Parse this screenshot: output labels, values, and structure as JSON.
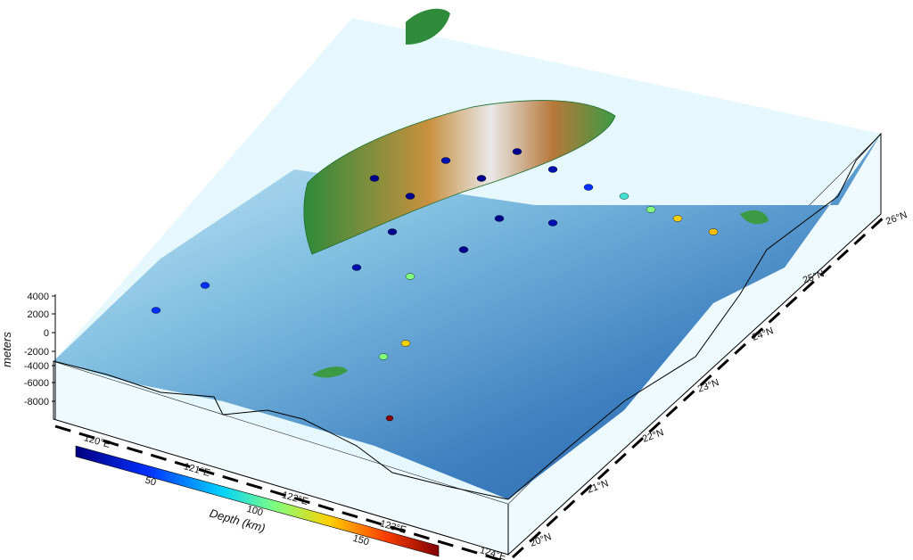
{
  "map": {
    "vertical_axis": {
      "label": "meters",
      "ticks": [
        "4000",
        "2000",
        "0",
        "-2000",
        "-4000",
        "-6000",
        "-8000"
      ]
    },
    "longitude_labels": [
      "120°E",
      "121°E",
      "122°E",
      "123°E",
      "124°E"
    ],
    "latitude_labels": [
      "20°N",
      "21°N",
      "22°N",
      "23°N",
      "24°N",
      "25°N",
      "26°N"
    ],
    "colorbar": {
      "label": "Depth (km)",
      "ticks": [
        "50",
        "100",
        "150"
      ]
    }
  }
}
